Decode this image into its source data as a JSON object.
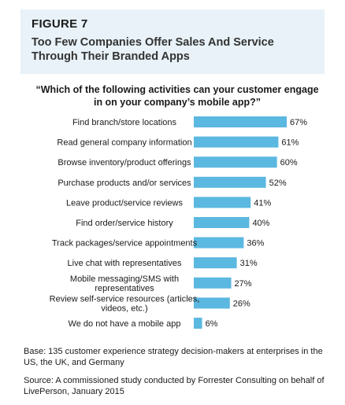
{
  "header": {
    "figure_label": "FIGURE 7",
    "title": "Too Few Companies Offer Sales And Service Through Their Branded Apps"
  },
  "question": "“Which of the following activities can your customer engage in on your company’s mobile app?”",
  "footer": {
    "base": "Base: 135 customer experience strategy decision-makers at enterprises in the US, the UK, and Germany",
    "source": "Source: A commissioned study conducted by Forrester Consulting on behalf of LivePerson, January 2015"
  },
  "colors": {
    "bar": "#5bb8e0",
    "header_bg": "#e8f2f8"
  },
  "chart_data": {
    "type": "bar",
    "orientation": "horizontal",
    "categories": [
      "Find branch/store locations",
      "Read general company information",
      "Browse inventory/product offerings",
      "Purchase products and/or services",
      "Leave product/service reviews",
      "Find order/service history",
      "Track packages/service appointments",
      "Live chat with representatives",
      "Mobile messaging/SMS with representatives",
      "Review self-service resources (articles, videos, etc.)",
      "We do not have a mobile app"
    ],
    "values": [
      67,
      61,
      60,
      52,
      41,
      40,
      36,
      31,
      27,
      26,
      6
    ],
    "value_labels": [
      "67%",
      "61%",
      "60%",
      "52%",
      "41%",
      "40%",
      "36%",
      "31%",
      "27%",
      "26%",
      "6%"
    ],
    "category_label_lines": [
      [
        "Find branch/store locations"
      ],
      [
        "Read general company information"
      ],
      [
        "Browse inventory/product offerings"
      ],
      [
        "Purchase products and/or services"
      ],
      [
        "Leave product/service reviews"
      ],
      [
        "Find order/service history"
      ],
      [
        "Track packages/service appointments"
      ],
      [
        "Live chat with representatives"
      ],
      [
        "Mobile messaging/SMS with",
        "representatives"
      ],
      [
        "Review self-service resources (articles,",
        "videos, etc.)"
      ],
      [
        "We do not have a mobile app"
      ]
    ],
    "xlim": [
      0,
      67
    ],
    "grid": false
  }
}
